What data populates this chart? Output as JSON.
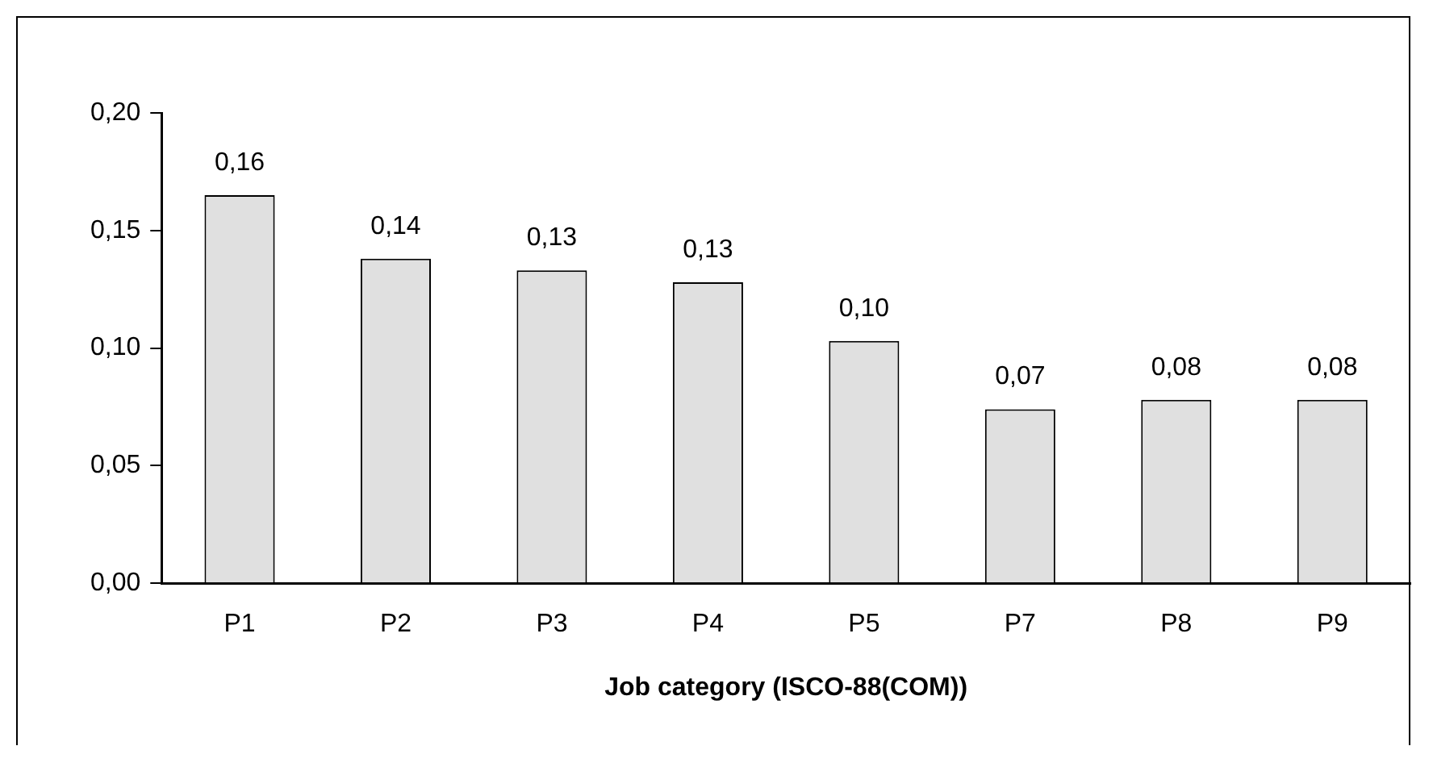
{
  "chart_data": {
    "type": "bar",
    "xlabel": "Job category (ISCO-88(COM))",
    "categories": [
      "P1",
      "P2",
      "P3",
      "P4",
      "P5",
      "P7",
      "P8",
      "P9"
    ],
    "values": [
      0.165,
      0.138,
      0.133,
      0.128,
      0.103,
      0.074,
      0.078,
      0.078
    ],
    "value_labels": [
      "0,16",
      "0,14",
      "0,13",
      "0,13",
      "0,10",
      "0,07",
      "0,08",
      "0,08"
    ],
    "color": "#e0e0e0",
    "ylim": [
      0,
      0.2
    ],
    "yticks": [
      {
        "value": 0,
        "label": "0,00"
      },
      {
        "value": 0.05,
        "label": "0,05"
      },
      {
        "value": 0.1,
        "label": "0,10"
      },
      {
        "value": 0.15,
        "label": "0,15"
      },
      {
        "value": 0.2,
        "label": "0,20"
      }
    ],
    "grid": false,
    "legend": false
  }
}
